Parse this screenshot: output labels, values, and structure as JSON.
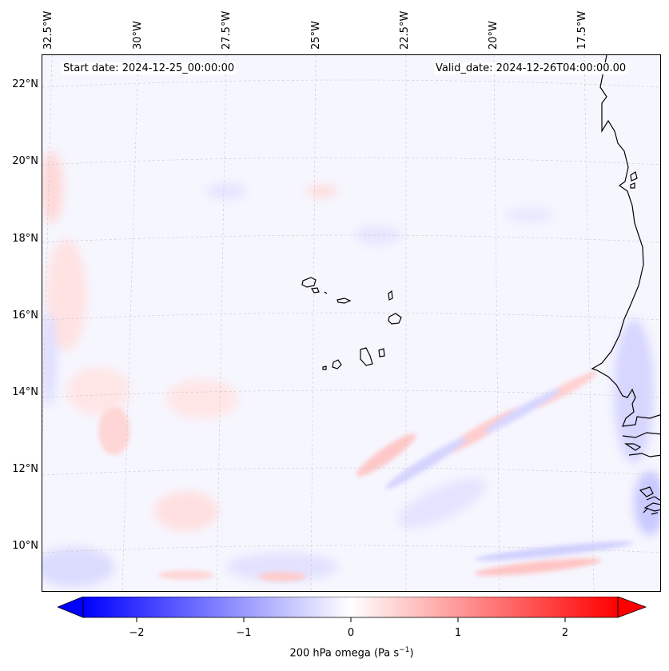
{
  "header": {
    "start_date": "Start date: 2024-12-25_00:00:00",
    "valid_date": "Valid_date: 2024-12-26T04:00:00.00"
  },
  "lon_labels": [
    "32.5°W",
    "30°W",
    "27.5°W",
    "25°W",
    "22.5°W",
    "20°W",
    "17.5°W"
  ],
  "lat_labels": [
    "22°N",
    "20°N",
    "18°N",
    "16°N",
    "14°N",
    "12°N",
    "10°N"
  ],
  "colorbar": {
    "ticks": [
      "−2",
      "−1",
      "0",
      "1",
      "2"
    ],
    "tick_values": [
      -2,
      -1,
      0,
      1,
      2
    ],
    "range": [
      -2.5,
      2.5
    ],
    "label_main": "200 hPa omega (Pa s",
    "label_sup": "−1",
    "label_end": ")",
    "colormap": "bwr",
    "low_color": "#0000ff",
    "mid_color": "#ffffff",
    "high_color": "#ff0000",
    "extend": "both"
  },
  "map": {
    "region_lon": [
      -33,
      -13.5
    ],
    "region_lat": [
      9,
      22.5
    ],
    "coastline_color": "#000000",
    "gridlines": "dashed",
    "background_field_color": "#f6f6ff"
  }
}
